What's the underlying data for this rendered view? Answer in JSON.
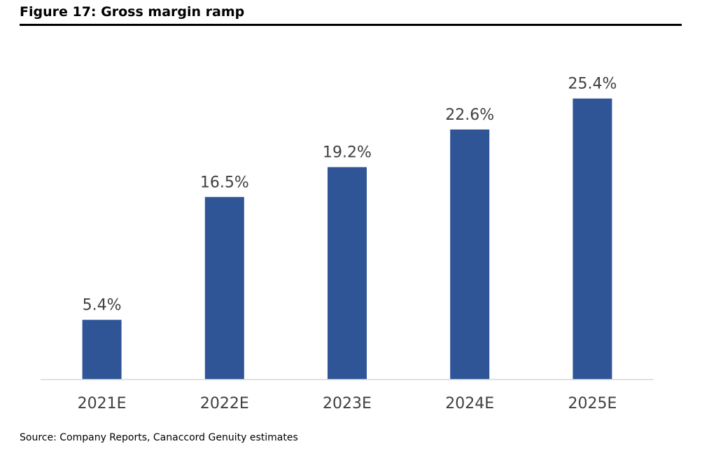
{
  "figure": {
    "title": "Figure 17: Gross margin ramp",
    "source": "Source: Company Reports, Canaccord Genuity estimates"
  },
  "chart_data": {
    "type": "bar",
    "title": "Figure 17: Gross margin ramp",
    "categories": [
      "2021E",
      "2022E",
      "2023E",
      "2024E",
      "2025E"
    ],
    "values": [
      5.4,
      16.5,
      19.2,
      22.6,
      25.4
    ],
    "data_labels": [
      "5.4%",
      "16.5%",
      "19.2%",
      "22.6%",
      "25.4%"
    ],
    "value_unit": "%",
    "xlabel": "",
    "ylabel": "",
    "ylim": [
      0,
      30
    ],
    "y_axis_visible": false,
    "grid": false,
    "legend": "none",
    "bar_color": "#2F5597",
    "label_color": "#404040",
    "baseline_color": "#D9D9D9"
  }
}
